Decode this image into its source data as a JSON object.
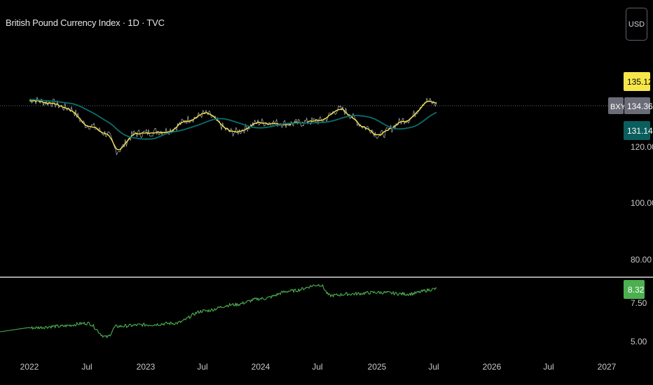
{
  "header": {
    "title": "British Pound Currency Index · 1D · TVC",
    "currency_button": "USD"
  },
  "price_axis": {
    "ticks": [
      "120.00",
      "100.00",
      "80.00"
    ],
    "symbol_tag": "BXY",
    "labels": {
      "ma_short": "135.12",
      "last": "134.36",
      "ma_long": "131.14"
    },
    "colors": {
      "ma_short": "#f7e64a",
      "last": "#6a6d78",
      "ma_long": "#0b5e5e"
    }
  },
  "lower_axis": {
    "ticks": [
      "7.50",
      "5.00"
    ],
    "value_label": "8.32",
    "color": "#4caf50"
  },
  "time_axis": {
    "ticks": [
      "2022",
      "Jul",
      "2023",
      "Jul",
      "2024",
      "Jul",
      "2025",
      "Jul",
      "2026",
      "Jul",
      "2027"
    ]
  },
  "chart_data": [
    {
      "type": "line",
      "title": "British Pound Currency Index · 1D · TVC",
      "x": [
        "2022-01",
        "2022-03",
        "2022-05",
        "2022-07",
        "2022-09",
        "2022-10",
        "2022-12",
        "2023-03",
        "2023-06",
        "2023-07",
        "2023-10",
        "2024-01",
        "2024-04",
        "2024-07",
        "2024-09",
        "2024-12",
        "2025-01",
        "2025-04",
        "2025-06",
        "2025-07"
      ],
      "series": [
        {
          "name": "BXY",
          "values": [
            136.0,
            135.0,
            133.0,
            127.0,
            124.0,
            118.0,
            124.0,
            125.0,
            129.5,
            131.0,
            124.5,
            128.0,
            127.5,
            128.5,
            132.5,
            126.0,
            123.5,
            129.0,
            135.5,
            134.36
          ]
        }
      ],
      "ylim": [
        75,
        145
      ],
      "grid": false
    },
    {
      "type": "line",
      "x": [
        "2022-01",
        "2022-04",
        "2022-07",
        "2022-09",
        "2022-10",
        "2023-01",
        "2023-04",
        "2023-07",
        "2023-10",
        "2024-01",
        "2024-04",
        "2024-07",
        "2024-08",
        "2024-10",
        "2025-01",
        "2025-04",
        "2025-07"
      ],
      "series": [
        {
          "values": [
            5.8,
            5.9,
            6.1,
            5.2,
            5.9,
            6.0,
            6.1,
            6.9,
            7.3,
            7.7,
            8.2,
            8.6,
            7.9,
            8.0,
            8.1,
            8.0,
            8.32
          ]
        }
      ],
      "ylim": [
        4.5,
        9.0
      ],
      "grid": false
    }
  ]
}
